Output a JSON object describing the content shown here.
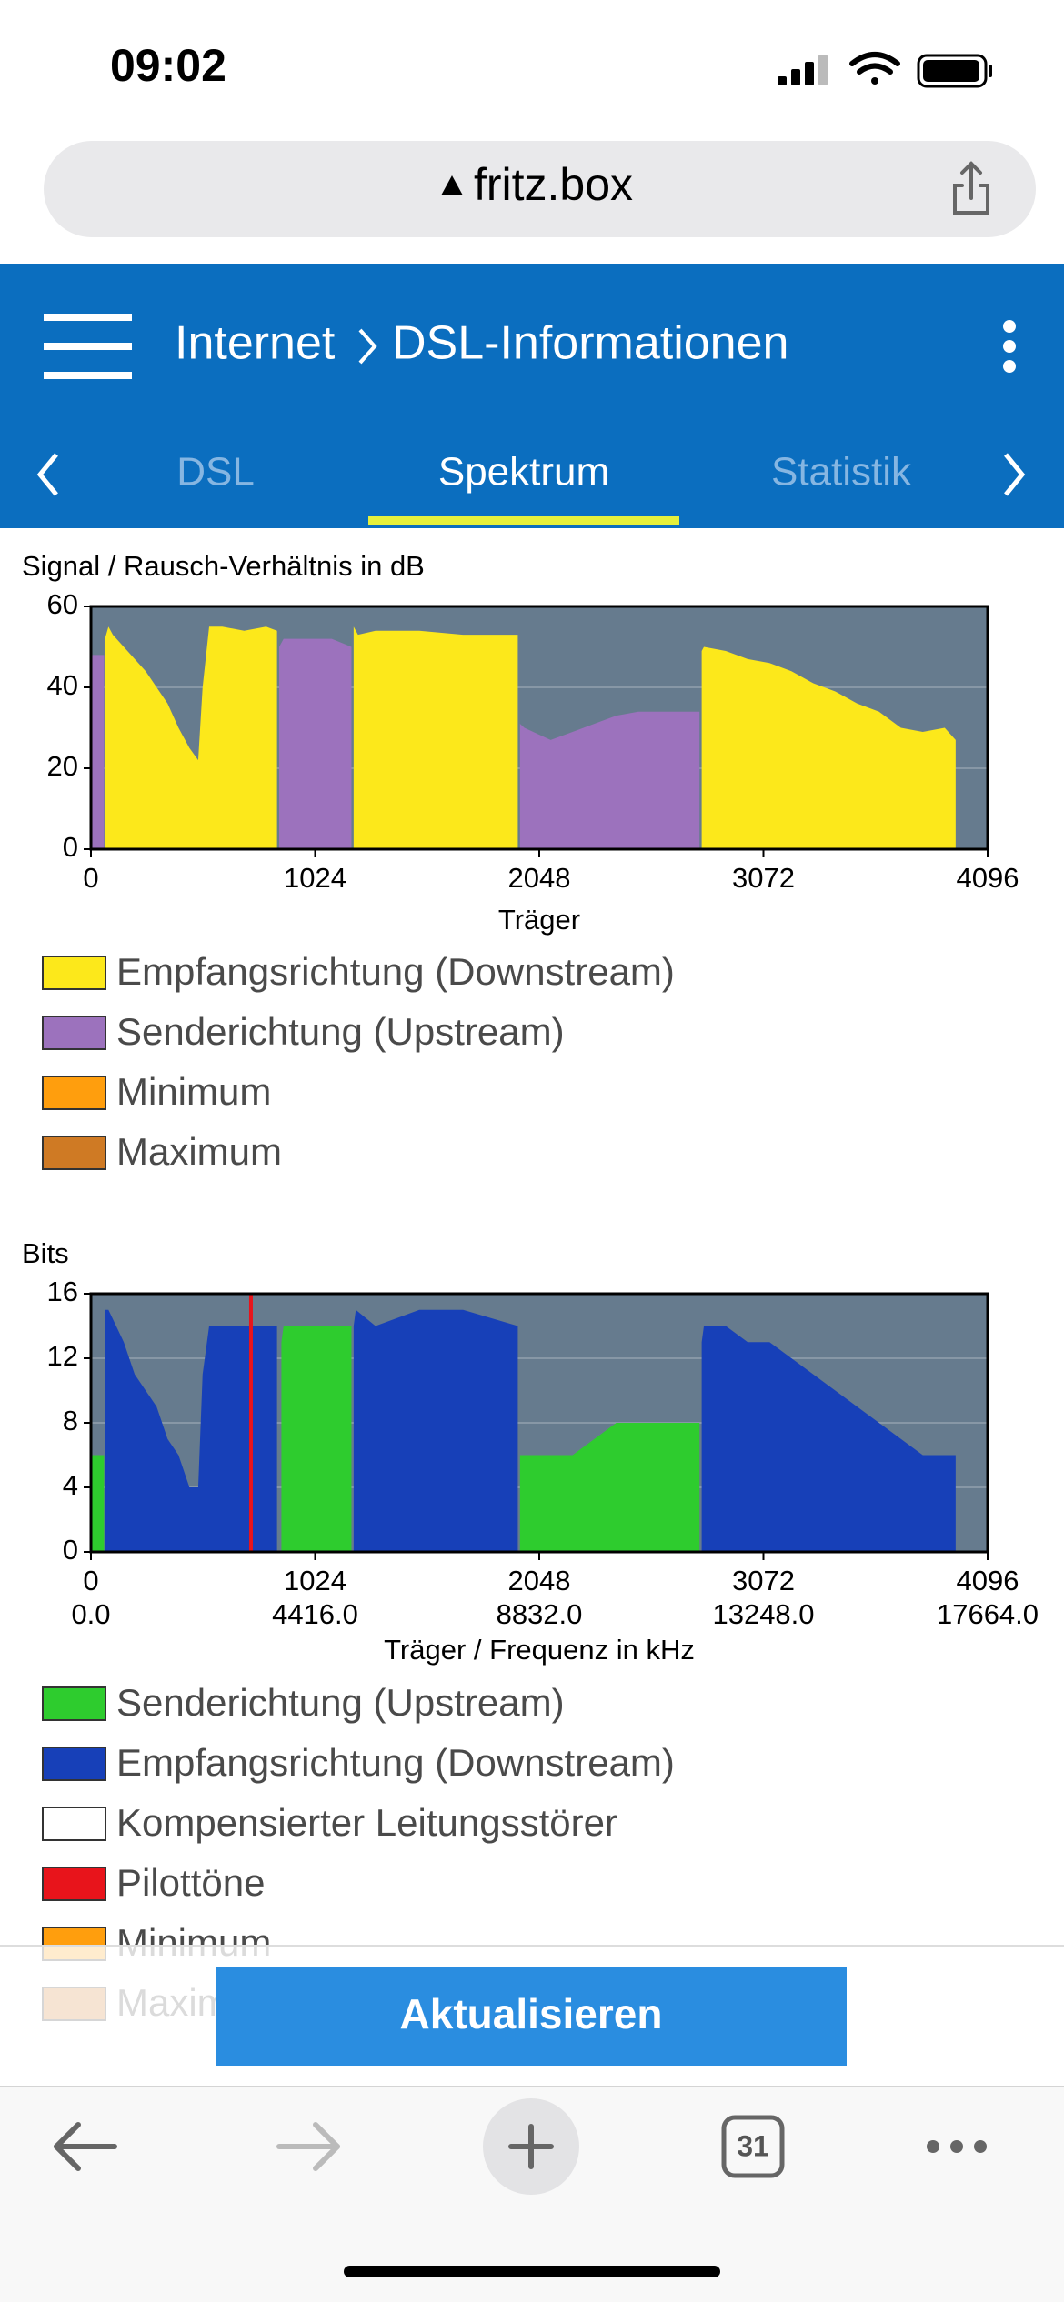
{
  "status_bar": {
    "time": "09:02"
  },
  "browser": {
    "url": "fritz.box",
    "tab_count": 31
  },
  "header": {
    "breadcrumb": [
      "Internet",
      "DSL-Informationen"
    ],
    "tabs": [
      "DSL",
      "Spektrum",
      "Statistik"
    ],
    "active_tab": 1
  },
  "chart_data": [
    {
      "type": "area",
      "y_label": "Signal / Rausch-Verhältnis in dB",
      "x_label": "Träger",
      "xlim": [
        0,
        4096
      ],
      "ylim": [
        0,
        60
      ],
      "xticks": [
        0,
        1024,
        2048,
        3072,
        4096
      ],
      "yticks": [
        0,
        20,
        40,
        60
      ],
      "grid": true,
      "plot_background": "#667b8e",
      "series": [
        {
          "name": "Empfangsrichtung (Downstream)",
          "color": "#fce81b",
          "x": [
            64,
            80,
            100,
            150,
            200,
            250,
            300,
            350,
            400,
            450,
            490,
            510,
            540,
            600,
            700,
            800,
            850,
            null,
            1200,
            1220,
            1300,
            1500,
            1700,
            1900,
            1950,
            null,
            2790,
            2800,
            2900,
            3000,
            3100,
            3200,
            3300,
            3400,
            3500,
            3600,
            3700,
            3800,
            3900,
            3950
          ],
          "values": [
            52,
            55,
            53,
            50,
            47,
            44,
            40,
            36,
            30,
            25,
            22,
            40,
            55,
            55,
            54,
            55,
            54,
            null,
            55,
            53,
            54,
            54,
            53,
            53,
            53,
            null,
            49,
            50,
            49,
            47,
            46,
            44,
            41,
            39,
            36,
            34,
            30,
            29,
            30,
            27
          ]
        },
        {
          "name": "Senderichtung (Upstream)",
          "color": "#9c72bd",
          "x": [
            0,
            60,
            null,
            860,
            880,
            900,
            1100,
            1190,
            null,
            1960,
            1980,
            2100,
            2200,
            2300,
            2400,
            2500,
            2600,
            2780
          ],
          "values": [
            48,
            48,
            null,
            50,
            52,
            52,
            52,
            50,
            null,
            31,
            30,
            27,
            29,
            31,
            33,
            34,
            34,
            34
          ]
        },
        {
          "name": "Minimum",
          "color": "#ff9e0d",
          "x": [],
          "values": []
        },
        {
          "name": "Maximum",
          "color": "#cf7a24",
          "x": [],
          "values": []
        }
      ]
    },
    {
      "type": "area",
      "y_label": "Bits",
      "x_label": "Träger / Frequenz in kHz",
      "xlim": [
        0,
        4096
      ],
      "ylim": [
        0,
        16
      ],
      "xticks": [
        0,
        1024,
        2048,
        3072,
        4096
      ],
      "yticks": [
        0,
        4,
        8,
        12,
        16
      ],
      "x2lim": [
        0,
        17664
      ],
      "x2ticks": [
        {
          "value": 0,
          "label": "0.0"
        },
        {
          "value": 4416,
          "label": "4416.0"
        },
        {
          "value": 8832,
          "label": "8832.0"
        },
        {
          "value": 13248,
          "label": "13248.0"
        },
        {
          "value": 17664,
          "label": "17664.0"
        }
      ],
      "grid": true,
      "plot_background": "#667b8e",
      "series": [
        {
          "name": "Senderichtung (Upstream)",
          "color": "#2ecc2e",
          "x": [
            0,
            60,
            null,
            870,
            880,
            1190,
            null,
            1960,
            2048,
            2200,
            2300,
            2400,
            2780
          ],
          "values": [
            6,
            6,
            null,
            13,
            14,
            14,
            null,
            6,
            6,
            6,
            7,
            8,
            8
          ]
        },
        {
          "name": "Empfangsrichtung (Downstream)",
          "color": "#1740b8",
          "x": [
            64,
            80,
            150,
            200,
            250,
            300,
            350,
            400,
            450,
            490,
            510,
            540,
            850,
            null,
            1200,
            1210,
            1300,
            1500,
            1700,
            1950,
            null,
            2790,
            2800,
            2900,
            3000,
            3100,
            3200,
            3300,
            3400,
            3500,
            3600,
            3700,
            3800,
            3900,
            3950
          ],
          "values": [
            15,
            15,
            13,
            11,
            10,
            9,
            7,
            6,
            4,
            4,
            11,
            14,
            14,
            null,
            14,
            15,
            14,
            15,
            15,
            14,
            null,
            13,
            14,
            14,
            13,
            13,
            12,
            11,
            10,
            9,
            8,
            7,
            6,
            6,
            6
          ]
        },
        {
          "name": "Kompensierter Leitungsstörer",
          "color": "#ffffff",
          "x": [],
          "values": []
        },
        {
          "name": "Pilottöne",
          "color": "#e8141b",
          "x": [
            731
          ],
          "values": [
            16
          ]
        },
        {
          "name": "Minimum",
          "color": "#ff9e0d",
          "x": [],
          "values": []
        },
        {
          "name": "Maximum",
          "color": "#cf7a24",
          "x": [],
          "values": []
        }
      ]
    }
  ],
  "button": "Aktualisieren"
}
